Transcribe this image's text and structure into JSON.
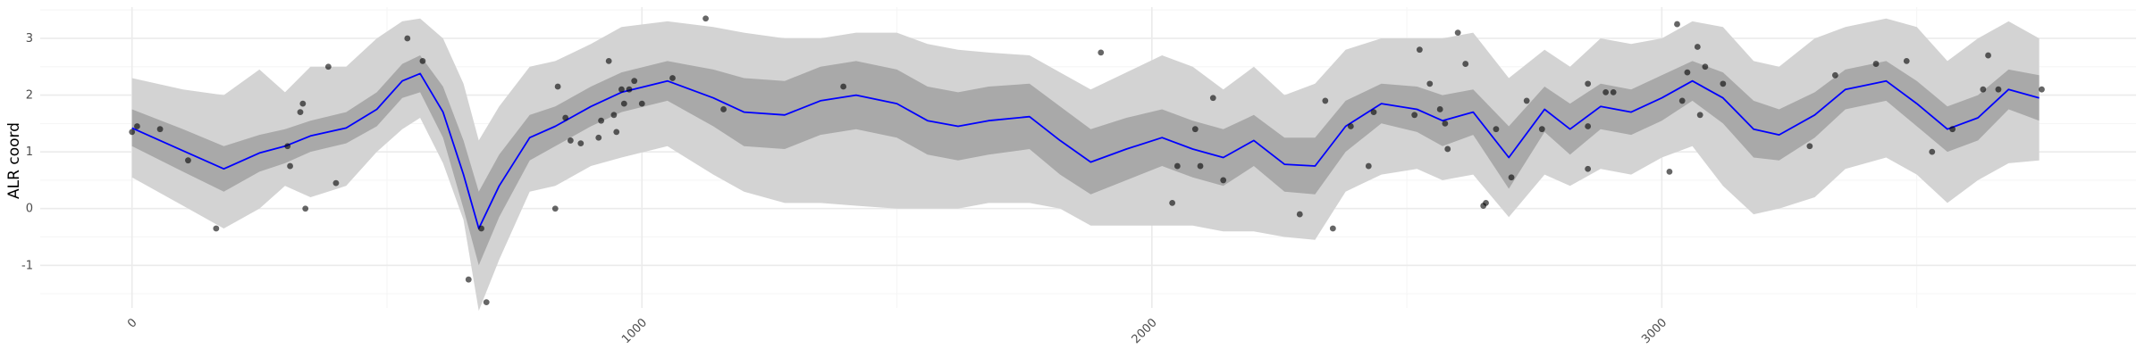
{
  "chart_data": {
    "type": "line",
    "title": "",
    "xlabel": "",
    "ylabel": "ALR coord",
    "xlim": [
      -180,
      3930
    ],
    "ylim": [
      -1.75,
      3.55
    ],
    "x_ticks": [
      0,
      1000,
      2000,
      3000
    ],
    "y_ticks": [
      -1,
      0,
      1,
      2,
      3
    ],
    "grid": true,
    "legend": "none",
    "colors": {
      "mean_line": "#0000ff",
      "inner_band": "#a9a9a9",
      "outer_band": "#d3d3d3",
      "points": "#000000",
      "grid_major": "#ebebeb",
      "grid_minor": "#f5f5f5",
      "tick_text": "#4d4d4d"
    },
    "series": [
      {
        "role": "mean",
        "x": [
          0,
          100,
          180,
          250,
          300,
          350,
          420,
          480,
          530,
          565,
          610,
          650,
          680,
          720,
          780,
          830,
          900,
          960,
          1050,
          1140,
          1200,
          1280,
          1350,
          1420,
          1500,
          1560,
          1620,
          1680,
          1760,
          1820,
          1880,
          1950,
          2020,
          2080,
          2140,
          2200,
          2260,
          2320,
          2380,
          2450,
          2520,
          2570,
          2630,
          2700,
          2770,
          2820,
          2880,
          2940,
          3000,
          3060,
          3120,
          3180,
          3230,
          3300,
          3360,
          3440,
          3500,
          3560,
          3620,
          3680,
          3740
        ],
        "y": [
          1.42,
          1.02,
          0.7,
          0.98,
          1.1,
          1.28,
          1.42,
          1.75,
          2.25,
          2.38,
          1.7,
          0.6,
          -0.35,
          0.4,
          1.25,
          1.45,
          1.8,
          2.05,
          2.25,
          1.95,
          1.7,
          1.65,
          1.9,
          2.0,
          1.85,
          1.55,
          1.45,
          1.55,
          1.62,
          1.2,
          0.82,
          1.05,
          1.25,
          1.05,
          0.9,
          1.2,
          0.78,
          0.75,
          1.45,
          1.85,
          1.75,
          1.55,
          1.7,
          0.9,
          1.75,
          1.4,
          1.8,
          1.7,
          1.95,
          2.25,
          1.95,
          1.4,
          1.3,
          1.65,
          2.1,
          2.25,
          1.85,
          1.4,
          1.6,
          2.1,
          1.95
        ]
      },
      {
        "role": "inner-band-upper",
        "x": [
          0,
          100,
          180,
          250,
          300,
          350,
          420,
          480,
          530,
          565,
          610,
          650,
          680,
          720,
          780,
          830,
          900,
          960,
          1050,
          1140,
          1200,
          1280,
          1350,
          1420,
          1500,
          1560,
          1620,
          1680,
          1760,
          1820,
          1880,
          1950,
          2020,
          2080,
          2140,
          2200,
          2260,
          2320,
          2380,
          2450,
          2520,
          2570,
          2630,
          2700,
          2770,
          2820,
          2880,
          2940,
          3000,
          3060,
          3120,
          3180,
          3230,
          3300,
          3360,
          3440,
          3500,
          3560,
          3620,
          3680,
          3740
        ],
        "y": [
          1.75,
          1.4,
          1.1,
          1.3,
          1.4,
          1.55,
          1.7,
          2.05,
          2.55,
          2.7,
          2.15,
          1.2,
          0.3,
          0.95,
          1.65,
          1.8,
          2.15,
          2.4,
          2.6,
          2.45,
          2.3,
          2.25,
          2.5,
          2.6,
          2.45,
          2.15,
          2.05,
          2.15,
          2.2,
          1.8,
          1.4,
          1.6,
          1.75,
          1.55,
          1.4,
          1.65,
          1.25,
          1.25,
          1.9,
          2.2,
          2.15,
          2.0,
          2.1,
          1.45,
          2.15,
          1.85,
          2.2,
          2.1,
          2.35,
          2.6,
          2.4,
          1.9,
          1.75,
          2.05,
          2.45,
          2.6,
          2.25,
          1.8,
          2.0,
          2.45,
          2.35
        ]
      },
      {
        "role": "inner-band-lower",
        "x": [
          0,
          100,
          180,
          250,
          300,
          350,
          420,
          480,
          530,
          565,
          610,
          650,
          680,
          720,
          780,
          830,
          900,
          960,
          1050,
          1140,
          1200,
          1280,
          1350,
          1420,
          1500,
          1560,
          1620,
          1680,
          1760,
          1820,
          1880,
          1950,
          2020,
          2080,
          2140,
          2200,
          2260,
          2320,
          2380,
          2450,
          2520,
          2570,
          2630,
          2700,
          2770,
          2820,
          2880,
          2940,
          3000,
          3060,
          3120,
          3180,
          3230,
          3300,
          3360,
          3440,
          3500,
          3560,
          3620,
          3680,
          3740
        ],
        "y": [
          1.1,
          0.65,
          0.3,
          0.65,
          0.8,
          1.0,
          1.15,
          1.45,
          1.95,
          2.05,
          1.25,
          0.0,
          -1.0,
          -0.15,
          0.85,
          1.1,
          1.45,
          1.7,
          1.9,
          1.45,
          1.1,
          1.05,
          1.3,
          1.4,
          1.25,
          0.95,
          0.85,
          0.95,
          1.05,
          0.6,
          0.25,
          0.5,
          0.75,
          0.55,
          0.4,
          0.75,
          0.3,
          0.25,
          1.0,
          1.5,
          1.35,
          1.1,
          1.3,
          0.35,
          1.35,
          0.95,
          1.4,
          1.3,
          1.55,
          1.9,
          1.5,
          0.9,
          0.85,
          1.25,
          1.75,
          1.9,
          1.45,
          1.0,
          1.2,
          1.75,
          1.55
        ]
      },
      {
        "role": "outer-band-upper",
        "x": [
          0,
          100,
          180,
          250,
          300,
          350,
          420,
          480,
          530,
          565,
          610,
          650,
          680,
          720,
          780,
          830,
          900,
          960,
          1050,
          1140,
          1200,
          1280,
          1350,
          1420,
          1500,
          1560,
          1620,
          1680,
          1760,
          1820,
          1880,
          1950,
          2020,
          2080,
          2140,
          2200,
          2260,
          2320,
          2380,
          2450,
          2520,
          2570,
          2630,
          2700,
          2770,
          2820,
          2880,
          2940,
          3000,
          3060,
          3120,
          3180,
          3230,
          3300,
          3360,
          3440,
          3500,
          3560,
          3620,
          3680,
          3740
        ],
        "y": [
          2.3,
          2.1,
          2.0,
          2.45,
          2.05,
          2.5,
          2.5,
          3.0,
          3.3,
          3.35,
          3.0,
          2.2,
          1.2,
          1.8,
          2.5,
          2.6,
          2.9,
          3.2,
          3.3,
          3.2,
          3.1,
          3.0,
          3.0,
          3.1,
          3.1,
          2.9,
          2.8,
          2.75,
          2.7,
          2.4,
          2.1,
          2.4,
          2.7,
          2.5,
          2.1,
          2.5,
          2.0,
          2.2,
          2.8,
          3.0,
          3.0,
          3.0,
          3.1,
          2.3,
          2.8,
          2.5,
          3.0,
          2.9,
          3.0,
          3.3,
          3.2,
          2.6,
          2.5,
          3.0,
          3.2,
          3.35,
          3.2,
          2.6,
          3.0,
          3.3,
          3.0
        ]
      },
      {
        "role": "outer-band-lower",
        "x": [
          0,
          100,
          180,
          250,
          300,
          350,
          420,
          480,
          530,
          565,
          610,
          650,
          680,
          720,
          780,
          830,
          900,
          960,
          1050,
          1140,
          1200,
          1280,
          1350,
          1420,
          1500,
          1560,
          1620,
          1680,
          1760,
          1820,
          1880,
          1950,
          2020,
          2080,
          2140,
          2200,
          2260,
          2320,
          2380,
          2450,
          2520,
          2570,
          2630,
          2700,
          2770,
          2820,
          2880,
          2940,
          3000,
          3060,
          3120,
          3180,
          3230,
          3300,
          3360,
          3440,
          3500,
          3560,
          3620,
          3680,
          3740
        ],
        "y": [
          0.55,
          0.05,
          -0.35,
          0.0,
          0.4,
          0.2,
          0.4,
          1.0,
          1.4,
          1.6,
          0.8,
          -0.2,
          -1.8,
          -0.9,
          0.3,
          0.4,
          0.75,
          0.9,
          1.1,
          0.6,
          0.3,
          0.1,
          0.1,
          0.05,
          0.0,
          0.0,
          0.0,
          0.1,
          0.1,
          0.0,
          -0.3,
          -0.3,
          -0.3,
          -0.3,
          -0.4,
          -0.4,
          -0.5,
          -0.55,
          0.3,
          0.6,
          0.7,
          0.5,
          0.6,
          -0.15,
          0.6,
          0.4,
          0.7,
          0.6,
          0.9,
          1.1,
          0.4,
          -0.1,
          0.0,
          0.2,
          0.7,
          0.9,
          0.6,
          0.1,
          0.5,
          0.8,
          0.85
        ]
      },
      {
        "role": "observations",
        "x": [
          0,
          10,
          55,
          110,
          165,
          305,
          310,
          330,
          340,
          335,
          385,
          400,
          540,
          570,
          695,
          660,
          685,
          830,
          835,
          850,
          860,
          880,
          915,
          920,
          935,
          945,
          950,
          965,
          960,
          975,
          985,
          1000,
          1060,
          1125,
          1160,
          1395,
          1900,
          2040,
          2050,
          2085,
          2095,
          2120,
          2140,
          2290,
          2340,
          2355,
          2390,
          2425,
          2435,
          2515,
          2525,
          2545,
          2565,
          2575,
          2580,
          2600,
          2615,
          2650,
          2655,
          2675,
          2705,
          2735,
          2765,
          2855,
          2855,
          2855,
          2890,
          2905,
          3015,
          3030,
          3040,
          3050,
          3070,
          3075,
          3085,
          3120,
          3290,
          3340,
          3420,
          3480,
          3530,
          3570,
          3630,
          3640,
          3660,
          3745
        ],
        "y": [
          1.35,
          1.45,
          1.4,
          0.85,
          -0.35,
          1.1,
          0.75,
          1.7,
          0.0,
          1.85,
          2.5,
          0.45,
          3.0,
          2.6,
          -1.65,
          -1.25,
          -0.35,
          0.0,
          2.15,
          1.6,
          1.2,
          1.15,
          1.25,
          1.55,
          2.6,
          1.65,
          1.35,
          1.85,
          2.1,
          2.1,
          2.25,
          1.85,
          2.3,
          3.35,
          1.75,
          2.15,
          2.75,
          0.1,
          0.75,
          1.4,
          0.75,
          1.95,
          0.5,
          -0.1,
          1.9,
          -0.35,
          1.45,
          0.75,
          1.7,
          1.65,
          2.8,
          2.2,
          1.75,
          1.5,
          1.05,
          3.1,
          2.55,
          0.05,
          0.1,
          1.4,
          0.55,
          1.9,
          1.4,
          2.2,
          0.7,
          1.45,
          2.05,
          2.05,
          0.65,
          3.25,
          1.9,
          2.4,
          2.85,
          1.65,
          2.5,
          2.2,
          1.1,
          2.35,
          2.55,
          2.6,
          1.0,
          1.4,
          2.1,
          2.7,
          2.1,
          2.1
        ]
      }
    ]
  }
}
